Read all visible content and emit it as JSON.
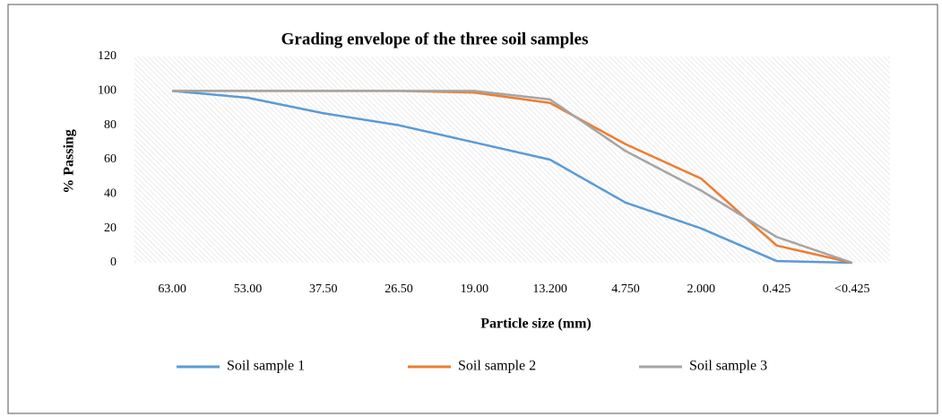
{
  "chart_data": {
    "type": "line",
    "title": "Grading  envelope of the three soil samples",
    "xlabel": "Particle size (mm)",
    "ylabel": "% Passing",
    "categories": [
      "63.00",
      "53.00",
      "37.50",
      "26.50",
      "19.00",
      "13.200",
      "4.750",
      "2.000",
      "0.425",
      "<0.425"
    ],
    "series": [
      {
        "name": "Soil sample 1",
        "color": "#5b9bd5",
        "values": [
          100,
          96,
          87,
          80,
          70,
          60,
          35,
          20,
          1,
          0
        ]
      },
      {
        "name": "Soil sample 2",
        "color": "#ed7d31",
        "values": [
          100,
          100,
          100,
          100,
          99,
          93,
          69,
          49,
          10,
          0
        ]
      },
      {
        "name": "Soil sample 3",
        "color": "#a5a5a5",
        "values": [
          100,
          100,
          100,
          100,
          100,
          95,
          65,
          42,
          15,
          0
        ]
      }
    ],
    "ylim": [
      0,
      120
    ],
    "yticks": [
      0,
      20,
      40,
      60,
      80,
      100,
      120
    ],
    "legend": "bottom"
  }
}
